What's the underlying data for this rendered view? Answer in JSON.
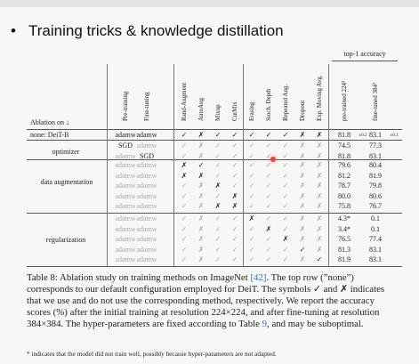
{
  "slide": {
    "bullet": "•",
    "title": "Training tricks & knowledge distillation"
  },
  "table": {
    "topacc_label": "top-1 accuracy",
    "ablation_label": "Ablation on ↓",
    "columns": [
      "Pre-training",
      "Fine-tuning",
      "Rand-Augment",
      "AutoAug",
      "Mixup",
      "CutMix",
      "Erasing",
      "Stoch. Depth",
      "Repeated Aug.",
      "Dropout",
      "Exp. Moving Avg.",
      "pre-trained 224²",
      "fine-tuned 384²"
    ],
    "baseline": {
      "label": "none: DeiT-B",
      "pre": "adamw",
      "ft": "adamw",
      "marks": [
        "✓",
        "✗",
        "✓",
        "✓",
        "✓",
        "✓",
        "✓",
        "✗",
        "✗"
      ],
      "acc224": "81.8",
      "acc224_sub": "±0.2",
      "acc384": "83.1",
      "acc384_sub": "±0.1"
    },
    "groups": [
      {
        "label": "optimizer",
        "rows": [
          {
            "pre": "SGD",
            "ft": "adamw",
            "pre_gray": false,
            "ft_gray": true,
            "marks": [
              "✓",
              "✗",
              "✓",
              "✓",
              "✓",
              "✓",
              "✓",
              "✗",
              "✗"
            ],
            "gray": [
              1,
              1,
              1,
              1,
              1,
              1,
              1,
              1,
              1
            ],
            "acc224": "74.5",
            "acc384": "77.3"
          },
          {
            "pre": "adamw",
            "ft": "SGD",
            "pre_gray": true,
            "ft_gray": false,
            "marks": [
              "✓",
              "✗",
              "✓",
              "✓",
              "✓",
              "✓",
              "✓",
              "✗",
              "✗"
            ],
            "gray": [
              1,
              1,
              1,
              1,
              1,
              1,
              1,
              1,
              1
            ],
            "acc224": "81.8",
            "acc384": "83.1"
          }
        ]
      },
      {
        "label": "data augmentation",
        "rows": [
          {
            "pre": "adamw",
            "ft": "adamw",
            "pre_gray": true,
            "ft_gray": true,
            "marks": [
              "✗",
              "✓",
              "✓",
              "✓",
              "✓",
              "✓",
              "✓",
              "✗",
              "✗"
            ],
            "gray": [
              0,
              0,
              1,
              1,
              1,
              1,
              1,
              1,
              1
            ],
            "acc224": "79.6",
            "acc384": "80.4"
          },
          {
            "pre": "adamw",
            "ft": "adamw",
            "pre_gray": true,
            "ft_gray": true,
            "marks": [
              "✗",
              "✗",
              "✓",
              "✓",
              "✓",
              "✓",
              "✓",
              "✗",
              "✗"
            ],
            "gray": [
              0,
              0,
              1,
              1,
              1,
              1,
              1,
              1,
              1
            ],
            "acc224": "81.2",
            "acc384": "81.9"
          },
          {
            "pre": "adamw",
            "ft": "adamw",
            "pre_gray": true,
            "ft_gray": true,
            "marks": [
              "✓",
              "✗",
              "✗",
              "✓",
              "✓",
              "✓",
              "✓",
              "✗",
              "✗"
            ],
            "gray": [
              1,
              1,
              0,
              1,
              1,
              1,
              1,
              1,
              1
            ],
            "acc224": "78.7",
            "acc384": "79.8"
          },
          {
            "pre": "adamw",
            "ft": "adamw",
            "pre_gray": true,
            "ft_gray": true,
            "marks": [
              "✓",
              "✗",
              "✓",
              "✗",
              "✓",
              "✓",
              "✓",
              "✗",
              "✗"
            ],
            "gray": [
              1,
              1,
              1,
              0,
              1,
              1,
              1,
              1,
              1
            ],
            "acc224": "80.0",
            "acc384": "80.6"
          },
          {
            "pre": "adamw",
            "ft": "adamw",
            "pre_gray": true,
            "ft_gray": true,
            "marks": [
              "✓",
              "✗",
              "✗",
              "✗",
              "✓",
              "✓",
              "✓",
              "✗",
              "✗"
            ],
            "gray": [
              1,
              1,
              0,
              0,
              1,
              1,
              1,
              1,
              1
            ],
            "acc224": "75.8",
            "acc384": "76.7"
          }
        ]
      },
      {
        "label": "regularization",
        "rows": [
          {
            "pre": "adamw",
            "ft": "adamw",
            "pre_gray": true,
            "ft_gray": true,
            "marks": [
              "✓",
              "✗",
              "✓",
              "✓",
              "✗",
              "✓",
              "✓",
              "✗",
              "✗"
            ],
            "gray": [
              1,
              1,
              1,
              1,
              0,
              1,
              1,
              1,
              1
            ],
            "acc224": "4.3*",
            "acc384": "0.1"
          },
          {
            "pre": "adamw",
            "ft": "adamw",
            "pre_gray": true,
            "ft_gray": true,
            "marks": [
              "✓",
              "✗",
              "✓",
              "✓",
              "✓",
              "✗",
              "✓",
              "✗",
              "✗"
            ],
            "gray": [
              1,
              1,
              1,
              1,
              1,
              0,
              1,
              1,
              1
            ],
            "acc224": "3.4*",
            "acc384": "0.1"
          },
          {
            "pre": "adamw",
            "ft": "adamw",
            "pre_gray": true,
            "ft_gray": true,
            "marks": [
              "✓",
              "✗",
              "✓",
              "✓",
              "✓",
              "✓",
              "✗",
              "✗",
              "✗"
            ],
            "gray": [
              1,
              1,
              1,
              1,
              1,
              1,
              0,
              1,
              1
            ],
            "acc224": "76.5",
            "acc384": "77.4"
          },
          {
            "pre": "adamw",
            "ft": "adamw",
            "pre_gray": true,
            "ft_gray": true,
            "marks": [
              "✓",
              "✗",
              "✓",
              "✓",
              "✓",
              "✓",
              "✓",
              "✓",
              "✗"
            ],
            "gray": [
              1,
              1,
              1,
              1,
              1,
              1,
              1,
              0,
              1
            ],
            "acc224": "81.3",
            "acc384": "83.1"
          },
          {
            "pre": "adamw",
            "ft": "adamw",
            "pre_gray": true,
            "ft_gray": true,
            "marks": [
              "✓",
              "✗",
              "✓",
              "✓",
              "✓",
              "✓",
              "✓",
              "✗",
              "✓"
            ],
            "gray": [
              1,
              1,
              1,
              1,
              1,
              1,
              1,
              1,
              0
            ],
            "acc224": "81.9",
            "acc384": "83.1"
          }
        ]
      }
    ]
  },
  "caption": {
    "p1": "Table 8: Ablation study on training methods on ImageNet ",
    "ref1": "[42]",
    "p2": ". The top row (”none”) corresponds to our default configuration employed for DeiT. The symbols ✓ and ✗ indicates that we use and do not use the corresponding method, respectively. We report the accuracy scores (%) after the initial training at resolution 224×224, and after fine-tuning at resolution 384×384. The hyper-parameters are fixed according to Table ",
    "ref2": "9",
    "p3": ", and may be suboptimal.",
    "note": "* indicates that the model did not train well, possibly because hyper-parameters are not adapted."
  }
}
